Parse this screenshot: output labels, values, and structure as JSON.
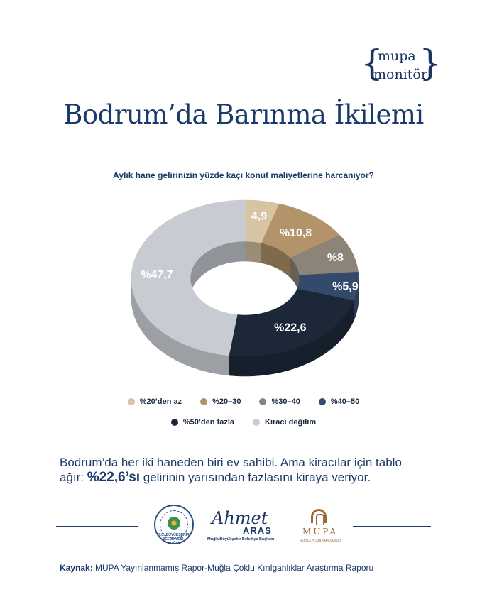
{
  "brand": {
    "line1": "mupa",
    "line2": "monitör"
  },
  "title": "Bodrum’da Barınma İkilemi",
  "summary": {
    "before": "Bodrum’da her iki haneden biri ev sahibi. Ama kiracılar için tablo ağır: ",
    "highlight": "%22,6’sı",
    "after": " gelirinin yarısından fazlasını kiraya veriyor."
  },
  "logos": {
    "municipality_text": "T.C. BÜYÜKŞEHİR BELEDİYESİ · MUĞLA",
    "aras_signature": "Ahmet",
    "aras_surname": "ARAS",
    "aras_role": "Muğla Büyükşehir Belediye Başkanı",
    "mupa_name": "MUPA",
    "mupa_sub": "MUĞLA PLANLAMA AJANSI"
  },
  "source": {
    "label": "Kaynak:",
    "text": " MUPA Yayınlanmamış Rapor-Muğla Çoklu Kırılganlıklar Araştırma Raporu"
  },
  "chart_data": {
    "type": "pie",
    "style": "3d-donut",
    "title": "Aylık hane gelirinizin yüzde kaçı konut maliyetlerine harcanıyor?",
    "legend_position": "bottom",
    "slices": [
      {
        "label": "%20’den az",
        "value": 4.9,
        "display": "4,9",
        "color": "#d6c4a5"
      },
      {
        "label": "%20–30",
        "value": 10.8,
        "display": "%10,8",
        "color": "#b2936a"
      },
      {
        "label": "%30–40",
        "value": 8,
        "display": "%8",
        "color": "#8c8478"
      },
      {
        "label": "%40–50",
        "value": 5.9,
        "display": "%5,9",
        "color": "#344a6c"
      },
      {
        "label": "%50’den fazla",
        "value": 22.6,
        "display": "%22,6",
        "color": "#1c2838"
      },
      {
        "label": "Kiracı değilim",
        "value": 47.7,
        "display": "%47,7",
        "color": "#c8ccd2"
      }
    ]
  }
}
